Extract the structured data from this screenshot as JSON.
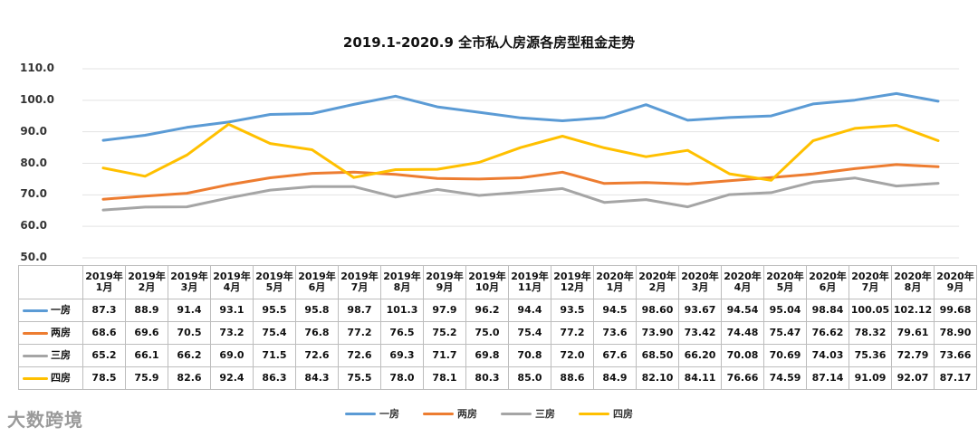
{
  "chart_data": {
    "type": "line",
    "title": "2019.1-2020.9 全市私人房源各房型租金走势",
    "ylim": [
      50,
      110
    ],
    "yticks": [
      "110.0",
      "100.0",
      "90.0",
      "80.0",
      "70.0",
      "60.0",
      "50.0"
    ],
    "categories": [
      [
        "2019年",
        "1月"
      ],
      [
        "2019年",
        "2月"
      ],
      [
        "2019年",
        "3月"
      ],
      [
        "2019年",
        "4月"
      ],
      [
        "2019年",
        "5月"
      ],
      [
        "2019年",
        "6月"
      ],
      [
        "2019年",
        "7月"
      ],
      [
        "2019年",
        "8月"
      ],
      [
        "2019年",
        "9月"
      ],
      [
        "2019年",
        "10月"
      ],
      [
        "2019年",
        "11月"
      ],
      [
        "2019年",
        "12月"
      ],
      [
        "2020年",
        "1月"
      ],
      [
        "2020年",
        "2月"
      ],
      [
        "2020年",
        "3月"
      ],
      [
        "2020年",
        "4月"
      ],
      [
        "2020年",
        "5月"
      ],
      [
        "2020年",
        "6月"
      ],
      [
        "2020年",
        "7月"
      ],
      [
        "2020年",
        "8月"
      ],
      [
        "2020年",
        "9月"
      ]
    ],
    "series": [
      {
        "name": "一房",
        "color": "#5b9bd5",
        "values": [
          87.3,
          88.9,
          91.4,
          93.1,
          95.5,
          95.8,
          98.7,
          101.3,
          97.9,
          96.2,
          94.4,
          93.5,
          94.5,
          98.6,
          93.67,
          94.54,
          95.04,
          98.84,
          100.05,
          102.12,
          99.68
        ],
        "labels": [
          "87.3",
          "88.9",
          "91.4",
          "93.1",
          "95.5",
          "95.8",
          "98.7",
          "101.3",
          "97.9",
          "96.2",
          "94.4",
          "93.5",
          "94.5",
          "98.60",
          "93.67",
          "94.54",
          "95.04",
          "98.84",
          "100.05",
          "102.12",
          "99.68"
        ]
      },
      {
        "name": "两房",
        "color": "#ed7d31",
        "values": [
          68.6,
          69.6,
          70.5,
          73.2,
          75.4,
          76.8,
          77.2,
          76.5,
          75.2,
          75.0,
          75.4,
          77.2,
          73.6,
          73.9,
          73.42,
          74.48,
          75.47,
          76.62,
          78.32,
          79.61,
          78.9
        ],
        "labels": [
          "68.6",
          "69.6",
          "70.5",
          "73.2",
          "75.4",
          "76.8",
          "77.2",
          "76.5",
          "75.2",
          "75.0",
          "75.4",
          "77.2",
          "73.6",
          "73.90",
          "73.42",
          "74.48",
          "75.47",
          "76.62",
          "78.32",
          "79.61",
          "78.90"
        ]
      },
      {
        "name": "三房",
        "color": "#a5a5a5",
        "values": [
          65.2,
          66.1,
          66.2,
          69.0,
          71.5,
          72.6,
          72.6,
          69.3,
          71.7,
          69.8,
          70.8,
          72.0,
          67.6,
          68.5,
          66.2,
          70.08,
          70.69,
          74.03,
          75.36,
          72.79,
          73.66
        ],
        "labels": [
          "65.2",
          "66.1",
          "66.2",
          "69.0",
          "71.5",
          "72.6",
          "72.6",
          "69.3",
          "71.7",
          "69.8",
          "70.8",
          "72.0",
          "67.6",
          "68.50",
          "66.20",
          "70.08",
          "70.69",
          "74.03",
          "75.36",
          "72.79",
          "73.66"
        ]
      },
      {
        "name": "四房",
        "color": "#ffc000",
        "values": [
          78.5,
          75.9,
          82.6,
          92.4,
          86.3,
          84.3,
          75.5,
          78.0,
          78.1,
          80.3,
          85.0,
          88.6,
          84.9,
          82.1,
          84.11,
          76.66,
          74.59,
          87.14,
          91.09,
          92.07,
          87.17
        ],
        "labels": [
          "78.5",
          "75.9",
          "82.6",
          "92.4",
          "86.3",
          "84.3",
          "75.5",
          "78.0",
          "78.1",
          "80.3",
          "85.0",
          "88.6",
          "84.9",
          "82.10",
          "84.11",
          "76.66",
          "74.59",
          "87.14",
          "91.09",
          "92.07",
          "87.17"
        ]
      }
    ],
    "legend_position": "bottom"
  },
  "brand": {
    "name": "大数跨境"
  }
}
